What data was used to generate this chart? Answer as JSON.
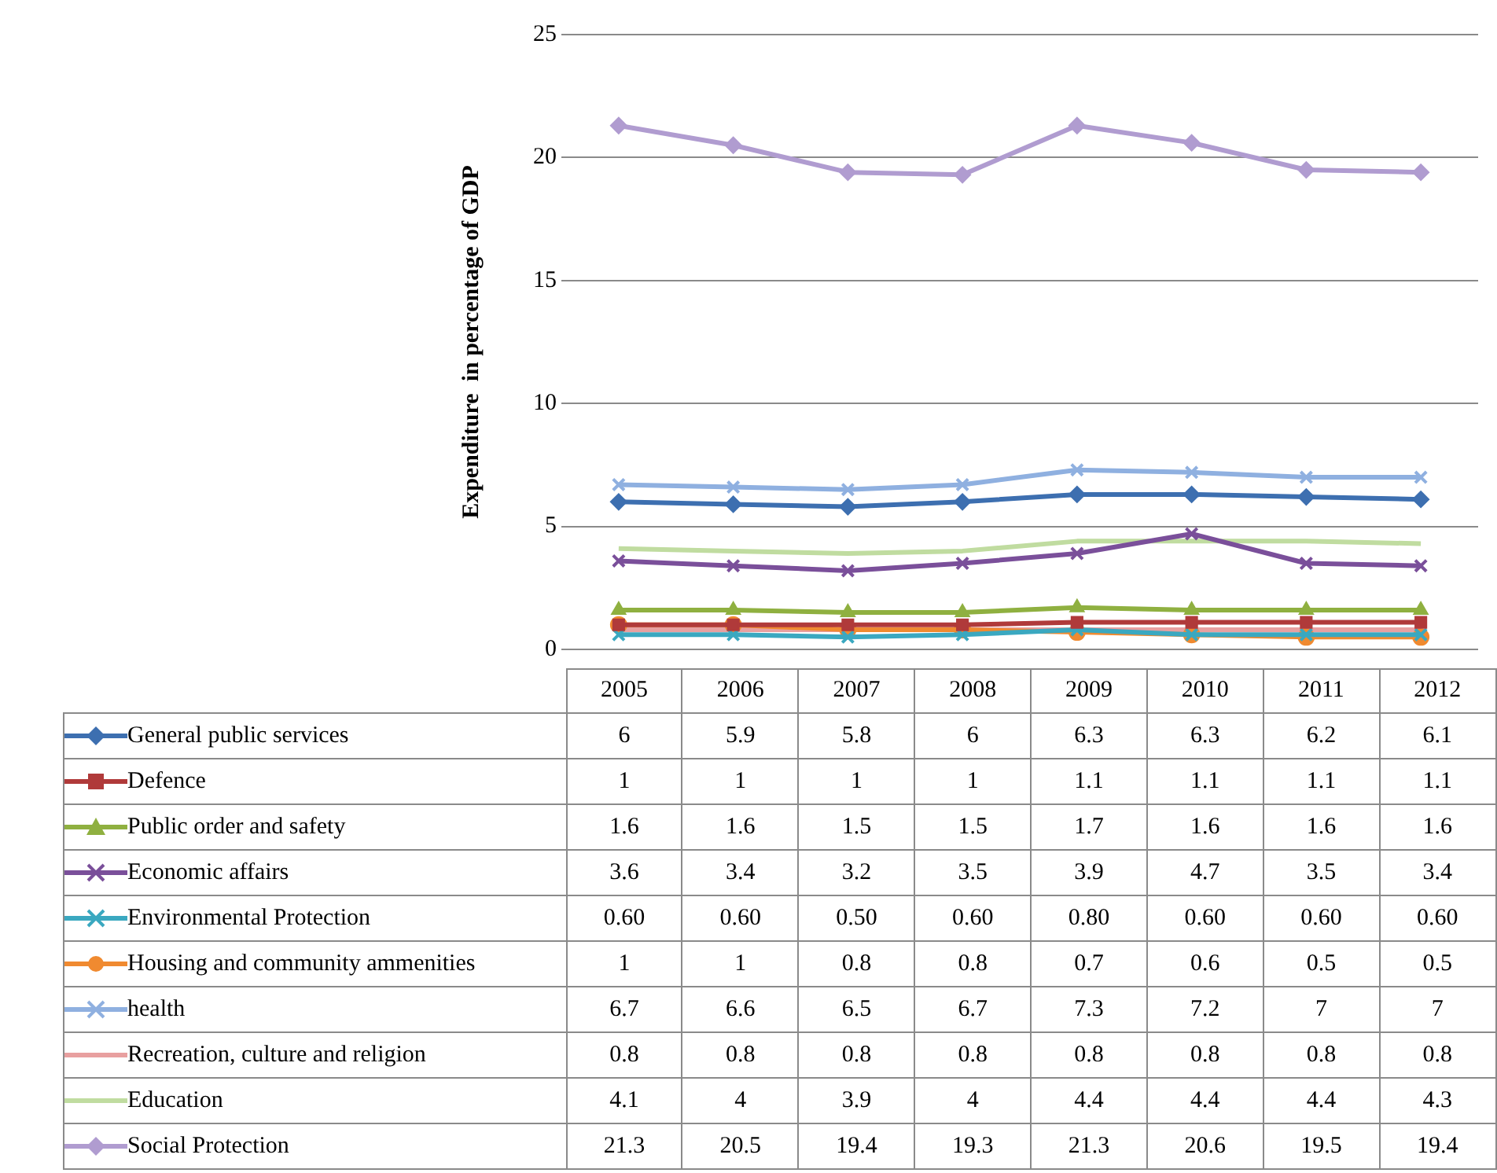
{
  "chart_data": {
    "type": "line",
    "ylabel": "Expenditure  in percentage of GDP",
    "categories": [
      "2005",
      "2006",
      "2007",
      "2008",
      "2009",
      "2010",
      "2011",
      "2012"
    ],
    "ylim": [
      0,
      25
    ],
    "yticks": [
      0,
      5,
      10,
      15,
      20,
      25
    ],
    "grid": "y",
    "legend": "bottom",
    "data_labels": true,
    "line_style": "solid",
    "series": [
      {
        "name": "General public services",
        "color": "#3d6fb0",
        "marker": "diamond",
        "values": [
          6,
          5.9,
          5.8,
          6,
          6.3,
          6.3,
          6.2,
          6.1
        ]
      },
      {
        "name": "Defence",
        "color": "#b03a3a",
        "marker": "square",
        "values": [
          1,
          1,
          1,
          1,
          1.1,
          1.1,
          1.1,
          1.1
        ]
      },
      {
        "name": "Public order and safety",
        "color": "#8fb040",
        "marker": "triangle",
        "values": [
          1.6,
          1.6,
          1.5,
          1.5,
          1.7,
          1.6,
          1.6,
          1.6
        ]
      },
      {
        "name": "Economic affairs",
        "color": "#7a4f9a",
        "marker": "cross",
        "values": [
          3.6,
          3.4,
          3.2,
          3.5,
          3.9,
          4.7,
          3.5,
          3.4
        ]
      },
      {
        "name": "Environmental Protection",
        "color": "#3aa8c0",
        "marker": "cross",
        "values": [
          0.6,
          0.6,
          0.5,
          0.6,
          0.8,
          0.6,
          0.6,
          0.6
        ],
        "value_labels": [
          "0.60",
          "0.60",
          "0.50",
          "0.60",
          "0.80",
          "0.60",
          "0.60",
          "0.60"
        ]
      },
      {
        "name": "Housing and community ammenities",
        "color": "#f08a30",
        "marker": "circle",
        "values": [
          1,
          1,
          0.8,
          0.8,
          0.7,
          0.6,
          0.5,
          0.5
        ]
      },
      {
        "name": "health",
        "color": "#8fb0e0",
        "marker": "cross",
        "values": [
          6.7,
          6.6,
          6.5,
          6.7,
          7.3,
          7.2,
          7,
          7
        ]
      },
      {
        "name": "Recreation, culture and religion",
        "color": "#e8a0a0",
        "marker": "none",
        "values": [
          0.8,
          0.8,
          0.8,
          0.8,
          0.8,
          0.8,
          0.8,
          0.8
        ]
      },
      {
        "name": "Education",
        "color": "#c0dca0",
        "marker": "none",
        "values": [
          4.1,
          4,
          3.9,
          4,
          4.4,
          4.4,
          4.4,
          4.3
        ]
      },
      {
        "name": "Social Protection",
        "color": "#b09cd0",
        "marker": "diamond",
        "values": [
          21.3,
          20.5,
          19.4,
          19.3,
          21.3,
          20.6,
          19.5,
          19.4
        ]
      }
    ]
  }
}
